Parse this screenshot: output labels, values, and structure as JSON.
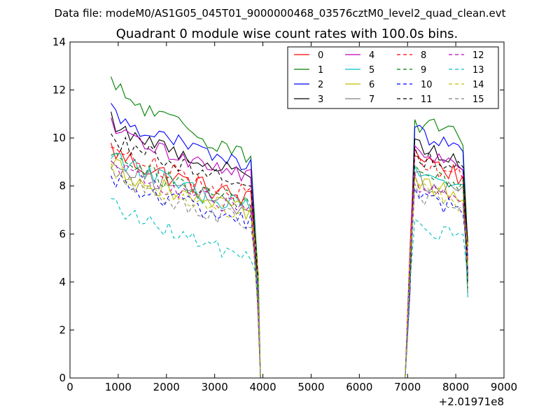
{
  "chart_data": {
    "type": "line",
    "supertitle": "Data file: modeM0/AS1G05_045T01_9000000468_03576cztM0_level2_quad_clean.evt",
    "title": "Quadrant 0 module wise count rates with 100.0s bins.",
    "xlabel": "",
    "ylabel": "",
    "x_offset_label": "+2.01971e8",
    "xlim": [
      0,
      9000
    ],
    "ylim": [
      0,
      14
    ],
    "x_ticks": [
      0,
      1000,
      2000,
      3000,
      4000,
      5000,
      6000,
      7000,
      8000,
      9000
    ],
    "x_tick_labels": [
      "0",
      "1000",
      "2000",
      "3000",
      "4000",
      "5000",
      "6000",
      "7000",
      "8000",
      "9000"
    ],
    "y_ticks": [
      0,
      2,
      4,
      6,
      8,
      10,
      12,
      14
    ],
    "y_tick_labels": [
      "0",
      "2",
      "4",
      "6",
      "8",
      "10",
      "12",
      "14"
    ],
    "legend_position": "top-right",
    "legend_columns": 4,
    "segments": {
      "seg1_x": [
        850,
        3800
      ],
      "gap_x": [
        3950,
        6950
      ],
      "seg2_x": [
        7150,
        8250
      ],
      "bin_width": 100
    },
    "series": [
      {
        "name": "0",
        "color": "#ff0000",
        "dash": "solid",
        "level1": 9.6,
        "end1": 7.4,
        "level2": 9.4,
        "end2": 8.2,
        "amp": 0.45
      },
      {
        "name": "1",
        "color": "#008000",
        "dash": "solid",
        "level1": 12.3,
        "end1": 9.3,
        "level2": 10.6,
        "end2": 10.0,
        "amp": 0.45
      },
      {
        "name": "2",
        "color": "#0000ff",
        "dash": "solid",
        "level1": 11.2,
        "end1": 8.8,
        "level2": 10.3,
        "end2": 9.3,
        "amp": 0.35
      },
      {
        "name": "3",
        "color": "#000000",
        "dash": "solid",
        "level1": 10.8,
        "end1": 8.4,
        "level2": 9.8,
        "end2": 8.9,
        "amp": 0.35
      },
      {
        "name": "4",
        "color": "#bf00bf",
        "dash": "solid",
        "level1": 10.5,
        "end1": 8.4,
        "level2": 9.5,
        "end2": 8.6,
        "amp": 0.35
      },
      {
        "name": "5",
        "color": "#00bfbf",
        "dash": "solid",
        "level1": 9.5,
        "end1": 7.0,
        "level2": 8.6,
        "end2": 7.6,
        "amp": 0.4
      },
      {
        "name": "6",
        "color": "#bfbf00",
        "dash": "solid",
        "level1": 9.0,
        "end1": 6.8,
        "level2": 8.2,
        "end2": 7.4,
        "amp": 0.4
      },
      {
        "name": "7",
        "color": "#808080",
        "dash": "solid",
        "level1": 9.3,
        "end1": 7.0,
        "level2": 8.3,
        "end2": 7.6,
        "amp": 0.4
      },
      {
        "name": "8",
        "color": "#ff0000",
        "dash": "dashed",
        "level1": 9.8,
        "end1": 7.6,
        "level2": 9.0,
        "end2": 8.3,
        "amp": 0.4
      },
      {
        "name": "9",
        "color": "#008000",
        "dash": "dashed",
        "level1": 9.4,
        "end1": 7.2,
        "level2": 8.6,
        "end2": 7.9,
        "amp": 0.4
      },
      {
        "name": "10",
        "color": "#0000ff",
        "dash": "dashed",
        "level1": 8.5,
        "end1": 6.5,
        "level2": 7.6,
        "end2": 6.9,
        "amp": 0.4
      },
      {
        "name": "11",
        "color": "#000000",
        "dash": "dashed",
        "level1": 10.2,
        "end1": 8.1,
        "level2": 9.3,
        "end2": 8.5,
        "amp": 0.4
      },
      {
        "name": "12",
        "color": "#bf00bf",
        "dash": "dashed",
        "level1": 9.0,
        "end1": 6.9,
        "level2": 8.2,
        "end2": 7.4,
        "amp": 0.4
      },
      {
        "name": "13",
        "color": "#00bfbf",
        "dash": "dashed",
        "level1": 7.4,
        "end1": 5.0,
        "level2": 6.3,
        "end2": 5.8,
        "amp": 0.35
      },
      {
        "name": "14",
        "color": "#bfbf00",
        "dash": "dashed",
        "level1": 8.8,
        "end1": 6.6,
        "level2": 8.0,
        "end2": 7.2,
        "amp": 0.4
      },
      {
        "name": "15",
        "color": "#808080",
        "dash": "dashed",
        "level1": 8.6,
        "end1": 6.4,
        "level2": 7.7,
        "end2": 7.0,
        "amp": 0.4
      }
    ]
  }
}
